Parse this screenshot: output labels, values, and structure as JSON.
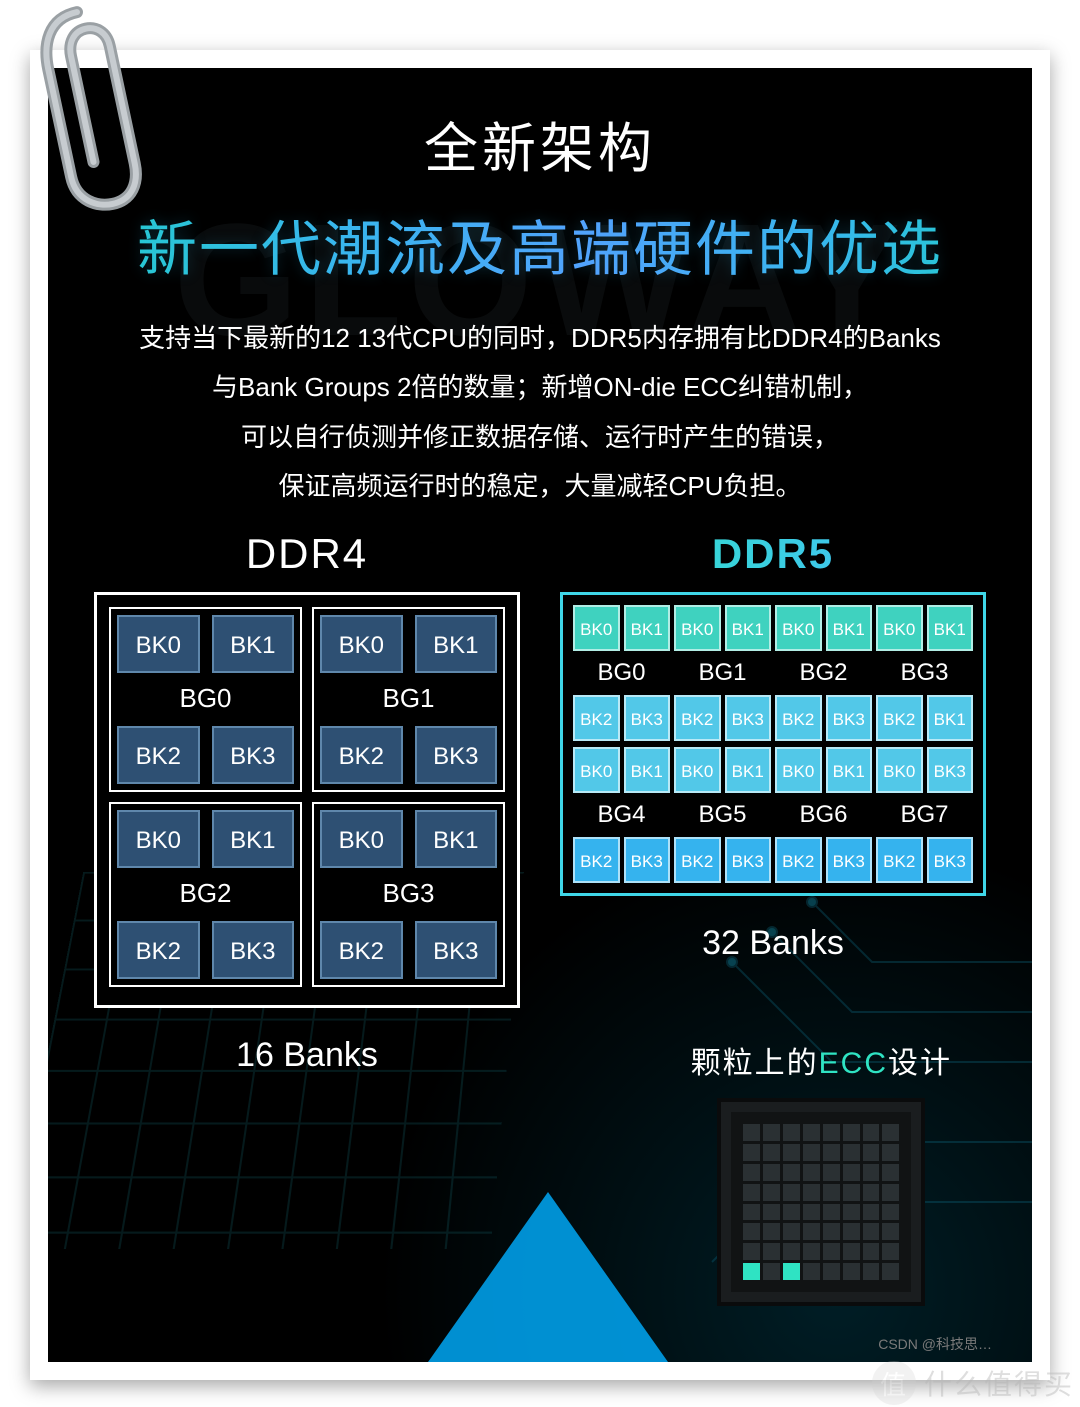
{
  "watermark": "GLOWAY",
  "title": "全新架构",
  "subtitle": "新一代潮流及高端硬件的优选",
  "desc_lines": [
    "支持当下最新的12  13代CPU的同时，DDR5内存拥有比DDR4的Banks",
    "与Bank Groups 2倍的数量；新增ON-die ECC纠错机制，",
    "可以自行侦测并修正数据存储、运行时产生的错误，",
    "保证高频运行时的稳定，大量减轻CPU负担。"
  ],
  "ddr4": {
    "title": "DDR4",
    "banks_label": "16 Banks",
    "bk_color": "#2e5073",
    "bk_border": "#5f87ab",
    "groups": [
      {
        "bg": "BG0",
        "top": [
          "BK0",
          "BK1"
        ],
        "bottom": [
          "BK2",
          "BK3"
        ]
      },
      {
        "bg": "BG1",
        "top": [
          "BK0",
          "BK1"
        ],
        "bottom": [
          "BK2",
          "BK3"
        ]
      },
      {
        "bg": "BG2",
        "top": [
          "BK0",
          "BK1"
        ],
        "bottom": [
          "BK2",
          "BK3"
        ]
      },
      {
        "bg": "BG3",
        "top": [
          "BK0",
          "BK1"
        ],
        "bottom": [
          "BK2",
          "BK3"
        ]
      }
    ]
  },
  "ddr5": {
    "title": "DDR5",
    "banks_label": "32 Banks",
    "row_colors": [
      "#3fd2bf",
      "#3fd2bf",
      "#52c8e8",
      "#52c8e8",
      "#35b3ee",
      "#35b3ee"
    ],
    "bg_labels_top": [
      "BG0",
      "BG1",
      "BG2",
      "BG3"
    ],
    "bg_labels_bottom": [
      "BG4",
      "BG5",
      "BG6",
      "BG7"
    ],
    "rows": [
      [
        "BK0",
        "BK1",
        "BK0",
        "BK1",
        "BK0",
        "BK1",
        "BK0",
        "BK1"
      ],
      [
        "BK2",
        "BK3",
        "BK2",
        "BK3",
        "BK2",
        "BK3",
        "BK2",
        "BK1"
      ],
      [
        "BK0",
        "BK1",
        "BK0",
        "BK1",
        "BK0",
        "BK1",
        "BK0",
        "BK3"
      ],
      [
        "BK2",
        "BK3",
        "BK2",
        "BK3",
        "BK2",
        "BK3",
        "BK2",
        "BK3"
      ]
    ]
  },
  "ecc": {
    "prefix": "颗粒上的",
    "highlight": "ECC",
    "suffix": "设计",
    "on_cells": [
      56,
      58
    ]
  },
  "footer": {
    "csdn": "CSDN @科技思…",
    "smzdm": "什么值得买",
    "smzdm_badge": "值"
  },
  "colors": {
    "bg": "#000000",
    "text": "#ffffff",
    "gradient_start": "#21d0c7",
    "gradient_end": "#56a2ff",
    "ddr5_border": "#3fd6e8"
  }
}
